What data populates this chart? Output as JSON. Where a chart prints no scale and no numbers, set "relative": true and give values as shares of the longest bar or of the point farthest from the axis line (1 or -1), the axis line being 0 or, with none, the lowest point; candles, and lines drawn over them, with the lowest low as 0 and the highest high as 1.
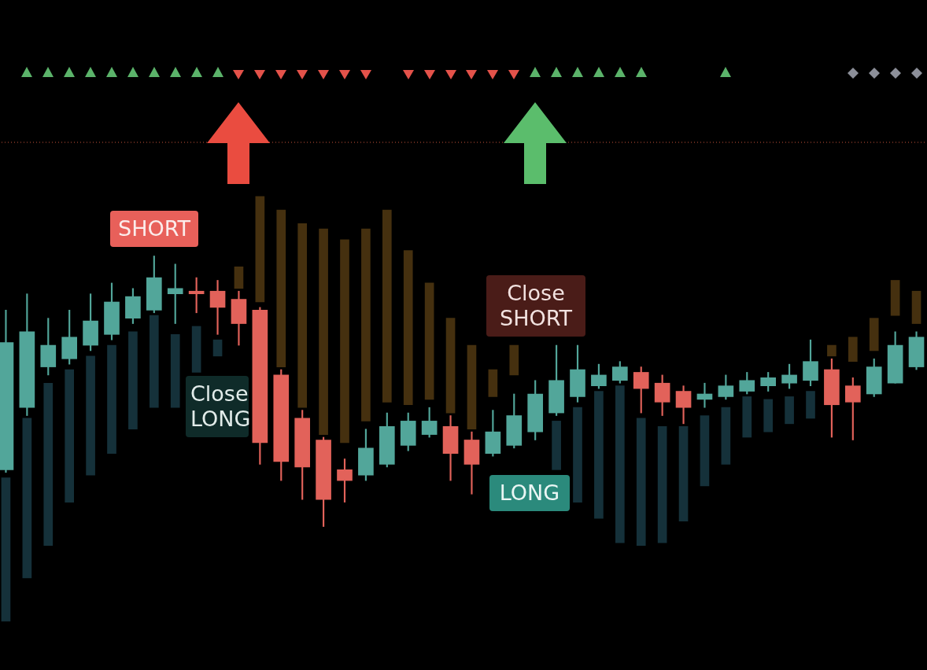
{
  "chart_data": {
    "type": "candlestick",
    "relative": true,
    "categories": [
      null,
      null,
      null,
      null,
      null,
      null,
      null,
      null,
      null,
      null,
      null,
      null,
      null,
      null,
      null,
      null,
      null,
      null,
      null,
      null,
      null,
      null,
      null,
      null,
      null,
      null,
      null,
      null,
      null,
      null,
      null,
      null,
      null,
      null,
      null,
      null,
      null,
      null,
      null,
      null,
      null,
      null,
      null,
      null
    ],
    "ohlc": [
      [
        0.21,
        0.8,
        0.2,
        0.68
      ],
      [
        0.44,
        0.86,
        0.41,
        0.72
      ],
      [
        0.59,
        0.77,
        0.56,
        0.67
      ],
      [
        0.62,
        0.8,
        0.6,
        0.7
      ],
      [
        0.67,
        0.86,
        0.65,
        0.76
      ],
      [
        0.71,
        0.9,
        0.69,
        0.83
      ],
      [
        0.77,
        0.88,
        0.75,
        0.85
      ],
      [
        0.8,
        1.0,
        0.79,
        0.92
      ],
      [
        0.86,
        0.97,
        0.75,
        0.88
      ],
      [
        0.87,
        0.92,
        0.79,
        0.86
      ],
      [
        0.87,
        0.91,
        0.71,
        0.81
      ],
      [
        0.84,
        0.87,
        0.67,
        0.75
      ],
      [
        0.8,
        0.81,
        0.23,
        0.31
      ],
      [
        0.56,
        0.58,
        0.17,
        0.24
      ],
      [
        0.4,
        0.43,
        0.1,
        0.22
      ],
      [
        0.32,
        0.33,
        0,
        0.1
      ],
      [
        0.21,
        0.25,
        0.09,
        0.17
      ],
      [
        0.19,
        0.36,
        0.17,
        0.29
      ],
      [
        0.23,
        0.42,
        0.22,
        0.37
      ],
      [
        0.3,
        0.42,
        0.28,
        0.39
      ],
      [
        0.34,
        0.44,
        0.33,
        0.39
      ],
      [
        0.37,
        0.41,
        0.17,
        0.27
      ],
      [
        0.32,
        0.35,
        0.12,
        0.23
      ],
      [
        0.27,
        0.43,
        0.26,
        0.35
      ],
      [
        0.3,
        0.49,
        0.29,
        0.41
      ],
      [
        0.35,
        0.54,
        0.32,
        0.49
      ],
      [
        0.42,
        0.67,
        0.41,
        0.54
      ],
      [
        0.48,
        0.67,
        0.46,
        0.58
      ],
      [
        0.52,
        0.6,
        0.51,
        0.56
      ],
      [
        0.54,
        0.61,
        0.53,
        0.59
      ],
      [
        0.57,
        0.59,
        0.42,
        0.51
      ],
      [
        0.53,
        0.56,
        0.41,
        0.46
      ],
      [
        0.5,
        0.52,
        0.38,
        0.44
      ],
      [
        0.47,
        0.53,
        0.44,
        0.49
      ],
      [
        0.48,
        0.56,
        0.47,
        0.52
      ],
      [
        0.5,
        0.57,
        0.49,
        0.54
      ],
      [
        0.52,
        0.57,
        0.5,
        0.55
      ],
      [
        0.53,
        0.6,
        0.51,
        0.56
      ],
      [
        0.54,
        0.69,
        0.52,
        0.61
      ],
      [
        0.58,
        0.62,
        0.33,
        0.45
      ],
      [
        0.52,
        0.55,
        0.32,
        0.46
      ],
      [
        0.49,
        0.62,
        0.48,
        0.59
      ],
      [
        0.53,
        0.72,
        0.53,
        0.67
      ],
      [
        0.59,
        0.72,
        0.58,
        0.7
      ]
    ],
    "colors": [
      "#52a69a",
      "#52a69a",
      "#52a69a",
      "#52a69a",
      "#52a69a",
      "#52a69a",
      "#52a69a",
      "#52a69a",
      "#52a69a",
      "#e2625a",
      "#e2625a",
      "#e2625a",
      "#e2625a",
      "#e2625a",
      "#e2625a",
      "#e2625a",
      "#e2625a",
      "#52a69a",
      "#52a69a",
      "#52a69a",
      "#52a69a",
      "#e2625a",
      "#e2625a",
      "#52a69a",
      "#52a69a",
      "#52a69a",
      "#52a69a",
      "#52a69a",
      "#52a69a",
      "#52a69a",
      "#e2625a",
      "#e2625a",
      "#e2625a",
      "#52a69a",
      "#52a69a",
      "#52a69a",
      "#52a69a",
      "#52a69a",
      "#52a69a",
      "#e2625a",
      "#e2625a",
      "#52a69a",
      "#52a69a",
      "#52a69a"
    ],
    "series": [
      {
        "type": "bar",
        "color": "#15313a",
        "base": [
          -0.35,
          -0.19,
          -0.07,
          0.09,
          0.19,
          0.27,
          0.36,
          0.44,
          0.44,
          0.57,
          0.63,
          null,
          null,
          null,
          null,
          null,
          null,
          null,
          null,
          null,
          null,
          null,
          null,
          null,
          null,
          null,
          0.21,
          0.09,
          0.03,
          -0.06,
          -0.07,
          -0.06,
          0.02,
          0.15,
          0.23,
          0.33,
          0.35,
          0.38,
          0.4,
          null,
          null,
          null,
          null,
          null
        ],
        "values": [
          0.53,
          0.59,
          0.6,
          0.49,
          0.44,
          0.4,
          0.36,
          0.34,
          0.27,
          0.17,
          0.06,
          null,
          null,
          null,
          null,
          null,
          null,
          null,
          null,
          null,
          null,
          null,
          null,
          null,
          null,
          null,
          0.18,
          0.35,
          0.47,
          0.58,
          0.47,
          0.43,
          0.35,
          0.26,
          0.21,
          0.15,
          0.12,
          0.1,
          0.1,
          null,
          null,
          null,
          null,
          null
        ]
      },
      {
        "type": "bar",
        "color": "#45300f",
        "base": [
          null,
          null,
          null,
          null,
          null,
          null,
          null,
          null,
          null,
          null,
          null,
          0.96,
          1.22,
          1.17,
          1.12,
          1.1,
          1.06,
          1.1,
          1.17,
          1.02,
          0.9,
          0.77,
          0.67,
          0.58,
          0.67,
          null,
          null,
          null,
          null,
          null,
          null,
          null,
          null,
          null,
          null,
          null,
          null,
          null,
          null,
          0.67,
          0.7,
          0.77,
          0.91,
          0.87
        ],
        "values": [
          null,
          null,
          null,
          null,
          null,
          null,
          null,
          null,
          null,
          null,
          null,
          -0.08,
          -0.39,
          -0.58,
          -0.68,
          -0.76,
          -0.75,
          -0.71,
          -0.71,
          -0.57,
          -0.43,
          -0.35,
          -0.31,
          -0.1,
          -0.11,
          null,
          null,
          null,
          null,
          null,
          null,
          null,
          null,
          null,
          null,
          null,
          null,
          null,
          null,
          -0.04,
          -0.09,
          -0.12,
          -0.13,
          -0.12
        ]
      }
    ],
    "ref_lines": [
      {
        "axis": "y",
        "value": 1.42,
        "color": "#c8553d",
        "line_style": "dotted"
      }
    ],
    "annotations": [
      "SHORT",
      "Close LONG",
      "Close SHORT",
      "LONG"
    ]
  }
}
